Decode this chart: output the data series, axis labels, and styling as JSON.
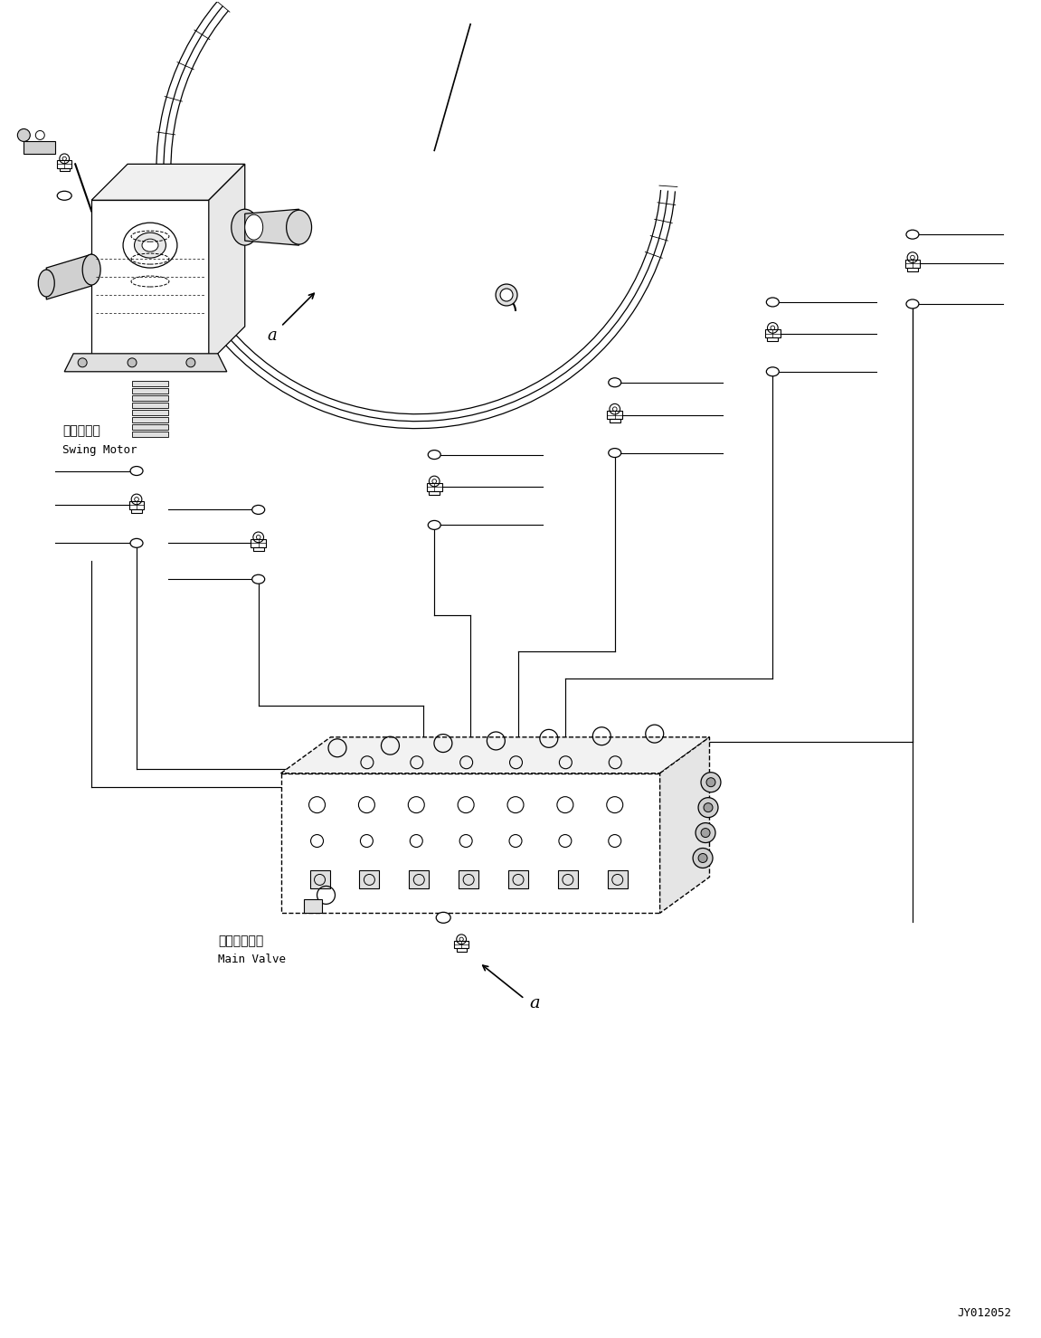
{
  "bg_color": "#ffffff",
  "lc": "#000000",
  "fig_width": 11.51,
  "fig_height": 14.79,
  "dpi": 100,
  "doc_number": "JY012052",
  "swing_motor_jp": "旋回モータ",
  "swing_motor_en": "Swing Motor",
  "main_valve_jp": "メインバルブ",
  "main_valve_en": "Main Valve",
  "fitting_groups": [
    {
      "name": "right_top",
      "fitting": [
        1020,
        270
      ],
      "circles": [
        [
          1020,
          240
        ],
        [
          1020,
          310
        ]
      ],
      "lines": [
        [
          1020,
          240,
          1100,
          225
        ],
        [
          1020,
          270,
          1100,
          270
        ],
        [
          1020,
          310,
          1100,
          310
        ]
      ]
    },
    {
      "name": "right_mid",
      "fitting": [
        810,
        360
      ],
      "circles": [
        [
          810,
          330
        ],
        [
          810,
          400
        ]
      ],
      "lines": [
        [
          810,
          330,
          900,
          315
        ],
        [
          810,
          360,
          900,
          360
        ],
        [
          810,
          400,
          900,
          400
        ]
      ]
    },
    {
      "name": "center_mid",
      "fitting": [
        620,
        450
      ],
      "circles": [
        [
          620,
          420
        ],
        [
          620,
          490
        ]
      ],
      "lines": [
        [
          620,
          420,
          710,
          405
        ],
        [
          620,
          450,
          710,
          450
        ],
        [
          620,
          490,
          710,
          490
        ]
      ]
    },
    {
      "name": "left_mid",
      "fitting": [
        290,
        570
      ],
      "circles": [
        [
          290,
          540
        ],
        [
          290,
          610
        ]
      ],
      "lines": [
        [
          290,
          540,
          200,
          525
        ],
        [
          290,
          570,
          200,
          570
        ],
        [
          290,
          610,
          200,
          610
        ]
      ]
    },
    {
      "name": "far_left",
      "fitting": [
        140,
        530
      ],
      "circles": [
        [
          140,
          500
        ],
        [
          140,
          570
        ]
      ],
      "lines": [
        [
          140,
          500,
          60,
          485
        ],
        [
          140,
          530,
          60,
          530
        ],
        [
          140,
          570,
          60,
          570
        ]
      ]
    }
  ]
}
